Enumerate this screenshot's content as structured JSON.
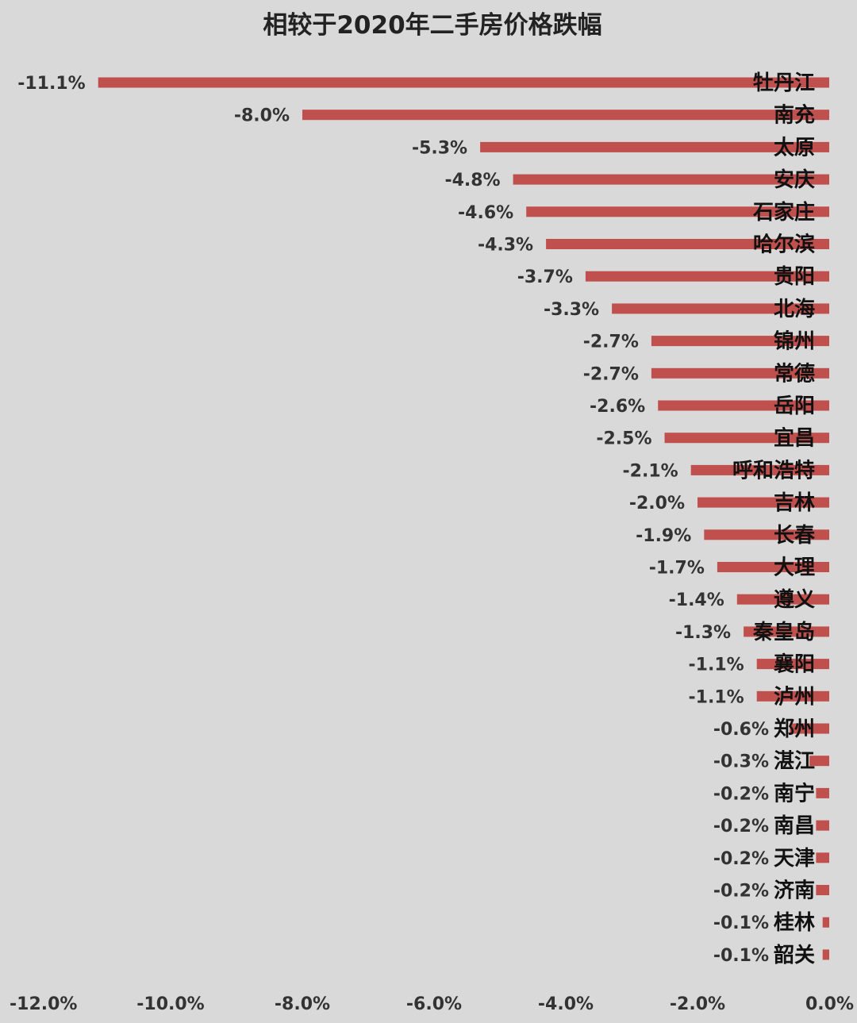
{
  "chart_data": {
    "type": "bar",
    "orientation": "horizontal",
    "title": "相较于2020年二手房价格跌幅",
    "categories": [
      "牡丹江",
      "南充",
      "太原",
      "安庆",
      "石家庄",
      "哈尔滨",
      "贵阳",
      "北海",
      "锦州",
      "常德",
      "岳阳",
      "宜昌",
      "呼和浩特",
      "吉林",
      "长春",
      "大理",
      "遵义",
      "秦皇岛",
      "襄阳",
      "泸州",
      "郑州",
      "湛江",
      "南宁",
      "南昌",
      "天津",
      "济南",
      "桂林",
      "韶关"
    ],
    "values": [
      -11.1,
      -8.0,
      -5.3,
      -4.8,
      -4.6,
      -4.3,
      -3.7,
      -3.3,
      -2.7,
      -2.7,
      -2.6,
      -2.5,
      -2.1,
      -2.0,
      -1.9,
      -1.7,
      -1.4,
      -1.3,
      -1.1,
      -1.1,
      -0.6,
      -0.3,
      -0.2,
      -0.2,
      -0.2,
      -0.2,
      -0.1,
      -0.1
    ],
    "value_labels": [
      "-11.1%",
      "-8.0%",
      "-5.3%",
      "-4.8%",
      "-4.6%",
      "-4.3%",
      "-3.7%",
      "-3.3%",
      "-2.7%",
      "-2.7%",
      "-2.6%",
      "-2.5%",
      "-2.1%",
      "-2.0%",
      "-1.9%",
      "-1.7%",
      "-1.4%",
      "-1.3%",
      "-1.1%",
      "-1.1%",
      "-0.6%",
      "-0.3%",
      "-0.2%",
      "-0.2%",
      "-0.2%",
      "-0.2%",
      "-0.1%",
      "-0.1%"
    ],
    "xlim": [
      -12.0,
      0.0
    ],
    "x_ticks": [
      -12.0,
      -10.0,
      -8.0,
      -6.0,
      -4.0,
      -2.0,
      0.0
    ],
    "x_tick_labels": [
      "-12.0%",
      "-10.0%",
      "-8.0%",
      "-6.0%",
      "-4.0%",
      "-2.0%",
      "0.0%"
    ],
    "grid": false,
    "legend": "none",
    "bar_color": "#c0504d",
    "background_color": "#d9d9d9"
  }
}
